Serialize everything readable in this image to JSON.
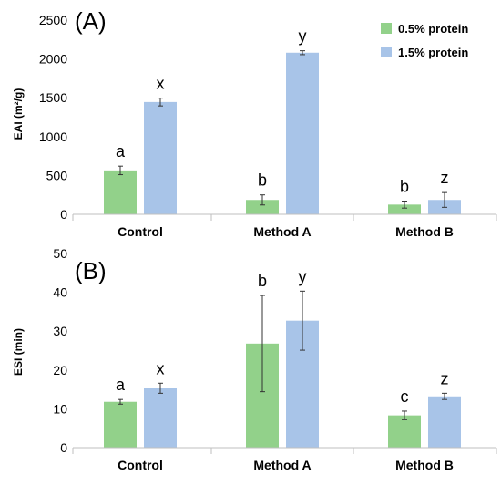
{
  "chart_data": [
    {
      "type": "bar",
      "panel_label": "(A)",
      "ylabel": "EAI (m²/g)",
      "xlabel": "",
      "categories": [
        "Control",
        "Method A",
        "Method B"
      ],
      "ylim": [
        0,
        2500
      ],
      "yticks": [
        "0",
        "500",
        "1000",
        "1500",
        "2000",
        "2500"
      ],
      "series": [
        {
          "name": "0.5% protein",
          "color": "#92d18a",
          "values": [
            565,
            185,
            125
          ],
          "errors": [
            55,
            65,
            45
          ],
          "letters": [
            "a",
            "b",
            "b"
          ]
        },
        {
          "name": "1.5% protein",
          "color": "#a8c4e8",
          "values": [
            1445,
            2080,
            185
          ],
          "errors": [
            50,
            25,
            95
          ],
          "letters": [
            "x",
            "y",
            "z"
          ]
        }
      ],
      "legend": "top-right",
      "grid": false
    },
    {
      "type": "bar",
      "panel_label": "(B)",
      "ylabel": "ESI (min)",
      "xlabel": "",
      "categories": [
        "Control",
        "Method A",
        "Method B"
      ],
      "ylim": [
        0,
        50
      ],
      "yticks": [
        "0",
        "10",
        "20",
        "30",
        "40",
        "50"
      ],
      "series": [
        {
          "name": "0.5% protein",
          "color": "#92d18a",
          "values": [
            11.8,
            26.8,
            8.3
          ],
          "errors": [
            0.6,
            12.4,
            1.1
          ],
          "letters": [
            "a",
            "b",
            "c"
          ]
        },
        {
          "name": "1.5% protein",
          "color": "#a8c4e8",
          "values": [
            15.3,
            32.7,
            13.2
          ],
          "errors": [
            1.3,
            7.6,
            0.8
          ],
          "letters": [
            "x",
            "y",
            "z"
          ]
        }
      ],
      "legend": "none",
      "grid": false
    }
  ]
}
